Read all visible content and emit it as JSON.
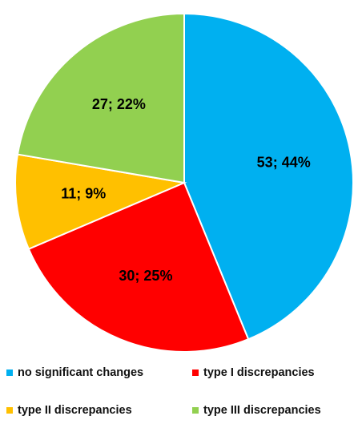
{
  "chart_data": {
    "type": "pie",
    "categories": [
      "no significant changes",
      "type I discrepancies",
      "type II discrepancies",
      "type III discrepancies"
    ],
    "values": [
      53,
      30,
      11,
      27
    ],
    "value_labels": [
      "53; 44%",
      "30; 25%",
      "11; 9%",
      "27; 22%"
    ],
    "colors": [
      "#00b0f0",
      "#ff0000",
      "#ffc000",
      "#92d050"
    ],
    "legend": "bottom"
  }
}
